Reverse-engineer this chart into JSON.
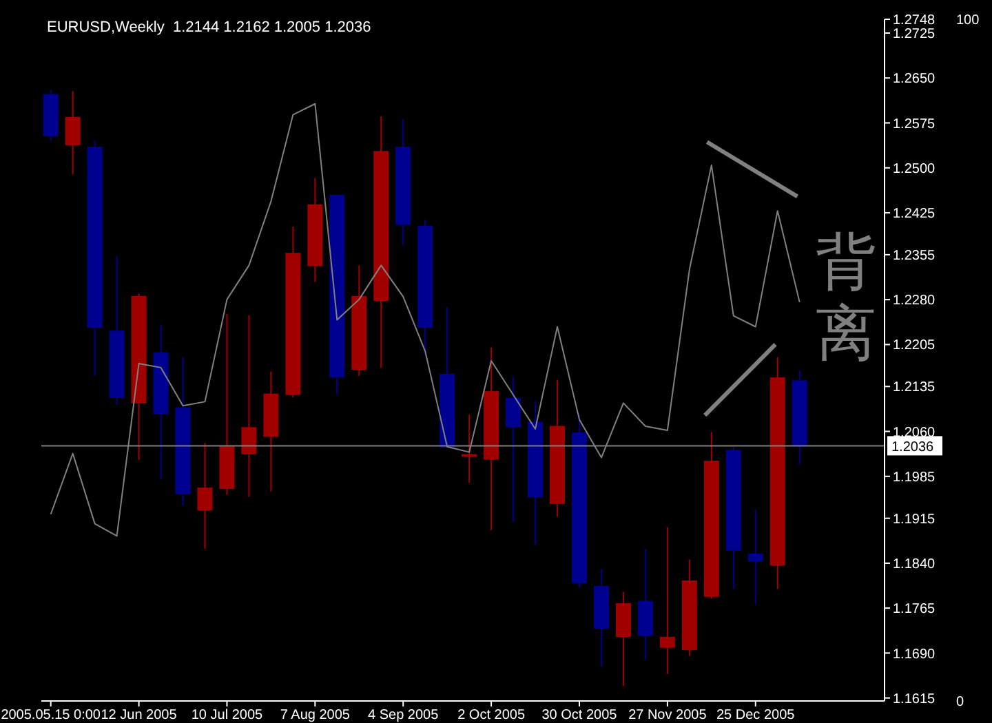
{
  "chart_data": {
    "type": "candlestick",
    "title": "EURUSD,Weekly  1.2144 1.2162 1.2005 1.2036",
    "x": [
      "2005-05-15",
      "2005-05-22",
      "2005-05-29",
      "2005-06-05",
      "2005-06-12",
      "2005-06-19",
      "2005-06-26",
      "2005-07-03",
      "2005-07-10",
      "2005-07-17",
      "2005-07-24",
      "2005-07-31",
      "2005-08-07",
      "2005-08-14",
      "2005-08-21",
      "2005-08-28",
      "2005-09-04",
      "2005-09-11",
      "2005-09-18",
      "2005-09-25",
      "2005-10-02",
      "2005-10-09",
      "2005-10-16",
      "2005-10-23",
      "2005-10-30",
      "2005-11-06",
      "2005-11-13",
      "2005-11-20",
      "2005-11-27",
      "2005-12-04",
      "2005-12-11",
      "2005-12-18",
      "2005-12-25",
      "2006-01-01",
      "2006-01-08"
    ],
    "series": [
      {
        "type": "candlestick",
        "ohlc": [
          [
            1.2622,
            1.263,
            1.2545,
            1.2554
          ],
          [
            1.2539,
            1.2628,
            1.2489,
            1.2584
          ],
          [
            1.2534,
            1.2545,
            1.2153,
            1.2234
          ],
          [
            1.2227,
            1.2353,
            1.2104,
            1.2117
          ],
          [
            1.2108,
            1.229,
            1.2012,
            1.2285
          ],
          [
            1.2191,
            1.2238,
            1.198,
            1.209
          ],
          [
            1.2099,
            1.2184,
            1.1936,
            1.1956
          ],
          [
            1.1929,
            1.2041,
            1.1864,
            1.1965
          ],
          [
            1.1965,
            1.2256,
            1.1954,
            1.2034
          ],
          [
            1.2023,
            1.2254,
            1.1951,
            1.2066
          ],
          [
            1.2052,
            1.216,
            1.196,
            1.2122
          ],
          [
            1.2122,
            1.2402,
            1.2117,
            1.2357
          ],
          [
            1.2337,
            1.2483,
            1.231,
            1.2438
          ],
          [
            1.2454,
            1.2454,
            1.2122,
            1.2151
          ],
          [
            1.2164,
            1.2337,
            1.2153,
            1.2285
          ],
          [
            1.2279,
            1.2586,
            1.2166,
            1.2527
          ],
          [
            1.2534,
            1.2581,
            1.2371,
            1.2406
          ],
          [
            1.2402,
            1.2413,
            1.2187,
            1.2234
          ],
          [
            1.2155,
            1.2267,
            1.2034,
            1.2034
          ],
          [
            1.2019,
            1.2088,
            1.1974,
            1.2021
          ],
          [
            1.2014,
            1.22,
            1.1895,
            1.2126
          ],
          [
            1.2115,
            1.2151,
            1.1909,
            1.2068
          ],
          [
            1.2075,
            1.211,
            1.1871,
            1.1951
          ],
          [
            1.194,
            1.2146,
            1.1918,
            1.2068
          ],
          [
            1.2057,
            1.2088,
            1.1799,
            1.1808
          ],
          [
            1.1801,
            1.183,
            1.1667,
            1.1732
          ],
          [
            1.1718,
            1.1792,
            1.1635,
            1.1772
          ],
          [
            1.1776,
            1.1864,
            1.168,
            1.172
          ],
          [
            1.17,
            1.19,
            1.1655,
            1.1716
          ],
          [
            1.1696,
            1.1846,
            1.1685,
            1.181
          ],
          [
            1.1785,
            1.2059,
            1.1781,
            1.201
          ],
          [
            1.2028,
            1.2034,
            1.1797,
            1.1862
          ],
          [
            1.1855,
            1.1929,
            1.1772,
            1.1844
          ],
          [
            1.1837,
            1.2184,
            1.1797,
            1.2149
          ],
          [
            1.2144,
            1.2162,
            1.2005,
            1.2036
          ]
        ],
        "colors": [
          "#000090",
          "#a00000",
          "#000090",
          "#000090",
          "#a00000",
          "#000090",
          "#000090",
          "#a00000",
          "#a00000",
          "#a00000",
          "#a00000",
          "#a00000",
          "#a00000",
          "#000090",
          "#a00000",
          "#a00000",
          "#000090",
          "#000090",
          "#000090",
          "#a00000",
          "#a00000",
          "#000090",
          "#000090",
          "#a00000",
          "#000090",
          "#000090",
          "#a00000",
          "#000090",
          "#a00000",
          "#a00000",
          "#a00000",
          "#000090",
          "#000090",
          "#a00000",
          "#000090"
        ]
      },
      {
        "type": "line",
        "axis": "y2",
        "color": "#808080",
        "values": [
          27.4,
          36.3,
          26,
          24.2,
          49.5,
          48.9,
          43.3,
          43.9,
          58.9,
          63.9,
          73.3,
          86,
          87.6,
          55.9,
          58.9,
          63.9,
          59.3,
          51.3,
          37.3,
          36.5,
          49.9,
          44.9,
          39.9,
          54.9,
          41.3,
          35.7,
          43.7,
          40.3,
          39.7,
          63.3,
          78.6,
          56.5,
          54.9,
          71.9,
          58.5
        ]
      }
    ],
    "xlim": [
      "2005-05-12",
      "2006-02-04"
    ],
    "xticks": [
      {
        "value": "2005-05-15",
        "label": "2005.05.15 0:00"
      },
      {
        "value": "2005-06-12",
        "label": "12 Jun 2005"
      },
      {
        "value": "2005-07-10",
        "label": "10 Jul 2005"
      },
      {
        "value": "2005-08-07",
        "label": "7 Aug 2005"
      },
      {
        "value": "2005-09-04",
        "label": "4 Sep 2005"
      },
      {
        "value": "2005-10-02",
        "label": "2 Oct 2005"
      },
      {
        "value": "2005-10-30",
        "label": "30 Oct 2005"
      },
      {
        "value": "2005-11-27",
        "label": "27 Nov 2005"
      },
      {
        "value": "2005-12-25",
        "label": "25 Dec 2005"
      }
    ],
    "ylim": [
      1.161,
      1.2748
    ],
    "yticks": [
      1.2748,
      1.2725,
      {
        "value": 1.265,
        "label": "1.2650"
      },
      1.2575,
      {
        "value": 1.25,
        "label": "1.2500"
      },
      1.2425,
      1.2355,
      {
        "value": 1.228,
        "label": "1.2280"
      },
      1.2205,
      1.2135,
      {
        "value": 1.206,
        "label": "1.2060"
      },
      1.1985,
      1.1915,
      {
        "value": 1.184,
        "label": "1.1840"
      },
      1.1765,
      {
        "value": 1.169,
        "label": "1.1690"
      },
      1.1615
    ],
    "y2lim": [
      0,
      100
    ],
    "y2ticks": [
      0,
      100
    ],
    "ref_lines": [
      {
        "axis": "y",
        "value": 1.2036,
        "label": "1.2036",
        "color": "#808080"
      }
    ],
    "annotations": [
      "背离"
    ],
    "grid": false,
    "legend": false
  }
}
